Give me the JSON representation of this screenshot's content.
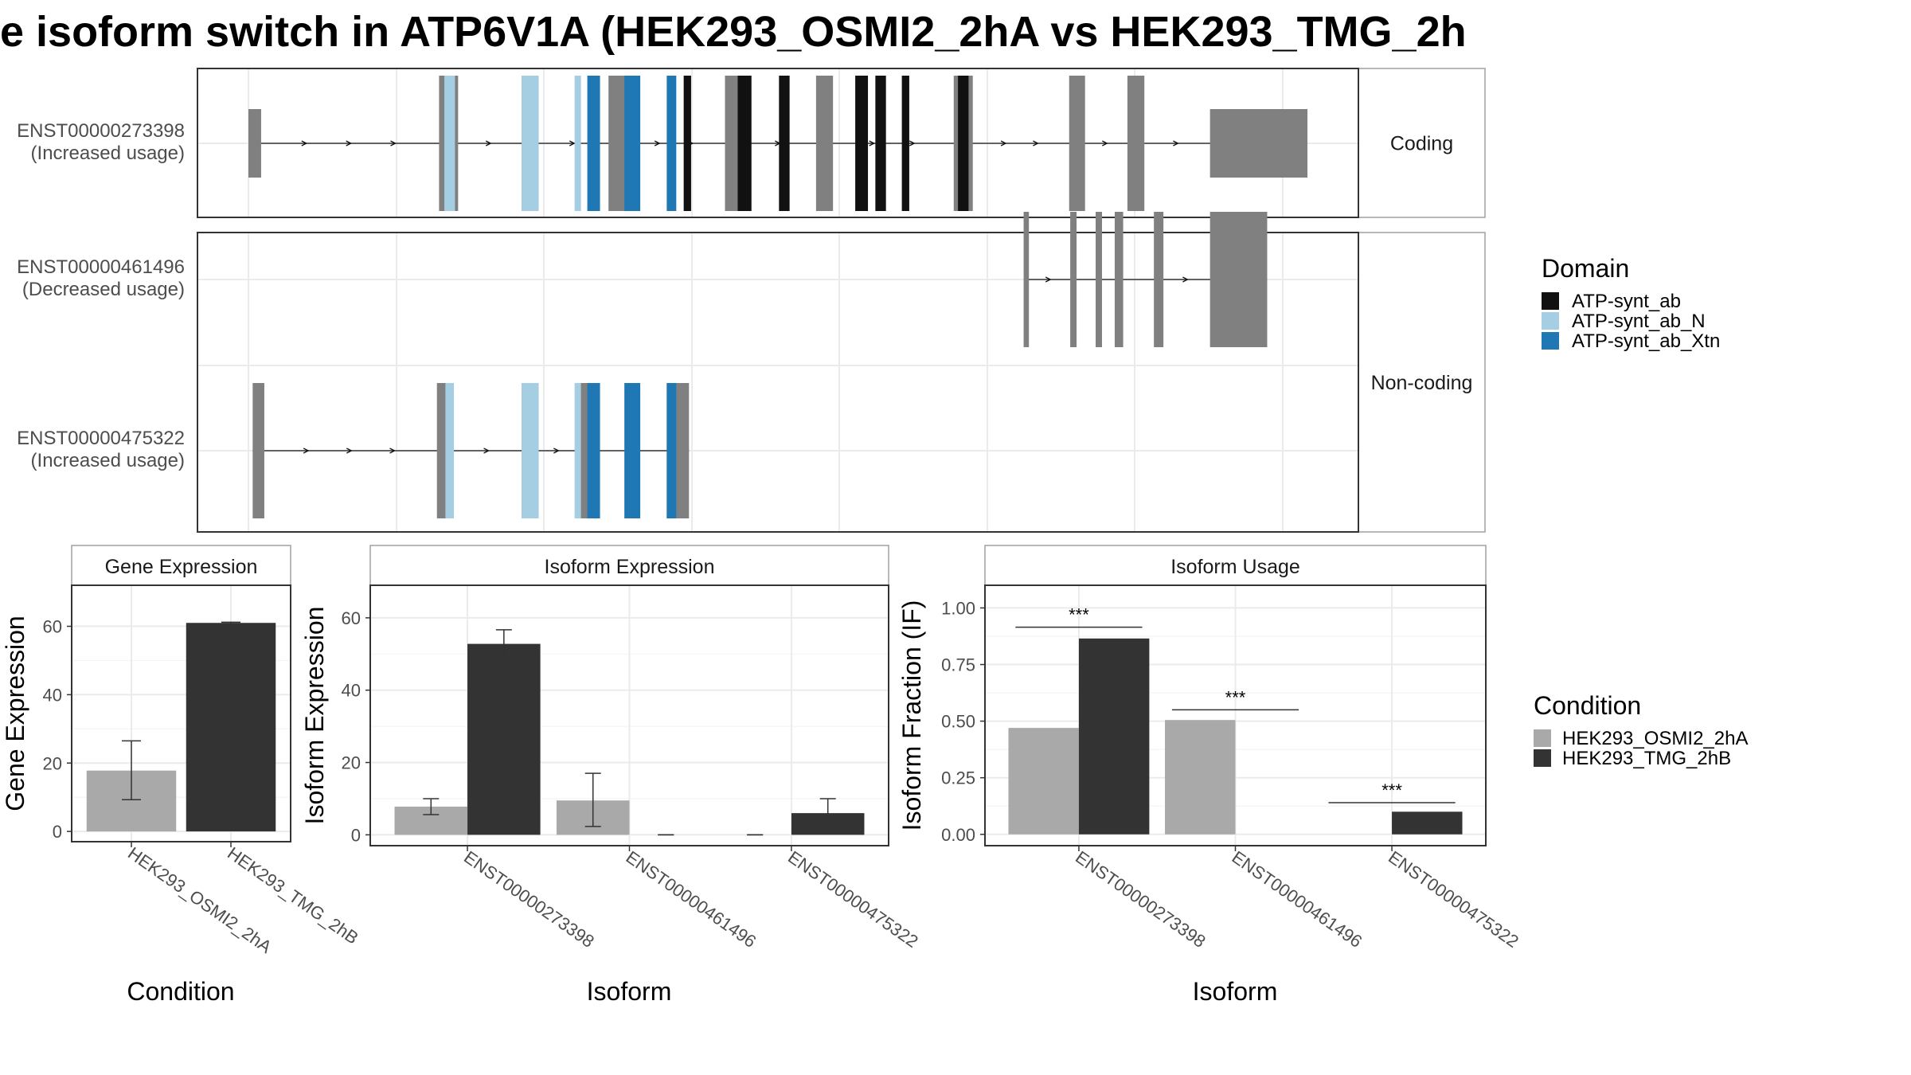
{
  "title": "e isoform switch in ATP6V1A (HEK293_OSMI2_2hA vs HEK293_TMG_2h",
  "colors": {
    "exon": "#808080",
    "ATP-synt_ab": "#111111",
    "ATP-synt_ab_N": "#a6cee3",
    "ATP-synt_ab_Xtn": "#1f78b4",
    "cond_a": "#a9a9a9",
    "cond_b": "#333333"
  },
  "structure": {
    "x_range": [
      0,
      1000
    ],
    "facets": [
      "Coding",
      "Non-coding"
    ],
    "transcripts": [
      {
        "id": "ENST00000273398",
        "usage": "(Increased usage)",
        "facet": "Coding",
        "coding": true,
        "exons": [
          [
            0,
            12
          ],
          [
            180,
            198
          ],
          [
            258,
            274
          ],
          [
            340,
            356
          ],
          [
            450,
            466
          ],
          [
            536,
            552
          ],
          [
            666,
            684
          ],
          [
            775,
            790
          ],
          [
            830,
            846
          ],
          [
            908,
            1000
          ]
        ],
        "domains": [
          {
            "name": "ATP-synt_ab_N",
            "x": [
              185,
              195
            ]
          },
          {
            "name": "ATP-synt_ab_N",
            "x": [
              258,
              274
            ]
          },
          {
            "name": "ATP-synt_ab_N",
            "x": [
              308,
              314
            ]
          },
          {
            "name": "ATP-synt_ab_Xtn",
            "x": [
              320,
              332
            ]
          },
          {
            "name": "ATP-synt_ab_Xtn",
            "x": [
              355,
              370
            ]
          },
          {
            "name": "ATP-synt_ab_Xtn",
            "x": [
              395,
              404
            ]
          },
          {
            "name": "ATP-synt_ab",
            "x": [
              411,
              418
            ]
          },
          {
            "name": "ATP-synt_ab",
            "x": [
              462,
              475
            ]
          },
          {
            "name": "ATP-synt_ab",
            "x": [
              501,
              511
            ]
          },
          {
            "name": "ATP-synt_ab",
            "x": [
              573,
              585
            ]
          },
          {
            "name": "ATP-synt_ab",
            "x": [
              592,
              602
            ]
          },
          {
            "name": "ATP-synt_ab",
            "x": [
              617,
              624
            ]
          },
          {
            "name": "ATP-synt_ab",
            "x": [
              670,
              680
            ]
          }
        ]
      },
      {
        "id": "ENST00000461496",
        "usage": "(Decreased usage)",
        "facet": "Non-coding",
        "coding": false,
        "exons": [
          [
            732,
            737
          ],
          [
            776,
            782
          ],
          [
            800,
            806
          ],
          [
            818,
            826
          ],
          [
            855,
            864
          ],
          [
            908,
            962
          ]
        ],
        "domains": []
      },
      {
        "id": "ENST00000475322",
        "usage": "(Increased usage)",
        "facet": "Non-coding",
        "coding": false,
        "exons": [
          [
            4,
            15
          ],
          [
            178,
            194
          ],
          [
            258,
            274
          ],
          [
            310,
            330
          ],
          [
            395,
            416
          ]
        ],
        "domains": [
          {
            "name": "ATP-synt_ab_N",
            "x": [
              186,
              194
            ]
          },
          {
            "name": "ATP-synt_ab_N",
            "x": [
              258,
              274
            ]
          },
          {
            "name": "ATP-synt_ab_N",
            "x": [
              308,
              314
            ]
          },
          {
            "name": "ATP-synt_ab_Xtn",
            "x": [
              320,
              332
            ]
          },
          {
            "name": "ATP-synt_ab_Xtn",
            "x": [
              355,
              370
            ]
          },
          {
            "name": "ATP-synt_ab_Xtn",
            "x": [
              395,
              404
            ]
          }
        ]
      }
    ]
  },
  "domain_legend": {
    "title": "Domain",
    "items": [
      "ATP-synt_ab",
      "ATP-synt_ab_N",
      "ATP-synt_ab_Xtn"
    ]
  },
  "condition_legend": {
    "title": "Condition",
    "items": [
      "HEK293_OSMI2_2hA",
      "HEK293_TMG_2hB"
    ]
  },
  "chart_data": [
    {
      "type": "bar",
      "title": "Gene Expression",
      "xlabel": "Condition",
      "ylabel": "Gene Expression",
      "categories": [
        "HEK293_OSMI2_2hA",
        "HEK293_TMG_2hB"
      ],
      "values": [
        17.8,
        61.0
      ],
      "error": [
        [
          9.3,
          26.5
        ],
        [
          60.8,
          61.2
        ]
      ],
      "yticks": [
        0,
        20,
        40,
        60
      ],
      "ylim": [
        -3,
        72
      ]
    },
    {
      "type": "bar",
      "title": "Isoform Expression",
      "xlabel": "Isoform",
      "ylabel": "Isoform Expression",
      "categories": [
        "ENST00000273398",
        "ENST00000461496",
        "ENST00000475322"
      ],
      "series": [
        {
          "name": "HEK293_OSMI2_2hA",
          "values": [
            7.8,
            9.5,
            0.0
          ],
          "error": [
            [
              5.6,
              10.0
            ],
            [
              2.3,
              17.0
            ],
            [
              0.0,
              0.0
            ]
          ]
        },
        {
          "name": "HEK293_TMG_2hB",
          "values": [
            52.8,
            0.0,
            6.0
          ],
          "error": [
            [
              48.9,
              56.7
            ],
            [
              0.0,
              0.0
            ],
            [
              2.0,
              10.0
            ]
          ]
        }
      ],
      "yticks": [
        0,
        20,
        40,
        60
      ],
      "ylim": [
        -3,
        69
      ]
    },
    {
      "type": "bar",
      "title": "Isoform Usage",
      "xlabel": "Isoform",
      "ylabel": "Isoform Fraction (IF)",
      "categories": [
        "ENST00000273398",
        "ENST00000461496",
        "ENST00000475322"
      ],
      "series": [
        {
          "name": "HEK293_OSMI2_2hA",
          "values": [
            0.47,
            0.505,
            0.0
          ]
        },
        {
          "name": "HEK293_TMG_2hB",
          "values": [
            0.865,
            0.0,
            0.1
          ]
        }
      ],
      "significance": [
        {
          "label": "***",
          "y": 0.915
        },
        {
          "label": "***",
          "y": 0.55
        },
        {
          "label": "***",
          "y": 0.14
        }
      ],
      "yticks": [
        "0.00",
        "0.25",
        "0.50",
        "0.75",
        "1.00"
      ],
      "ylim": [
        -0.05,
        1.1
      ]
    }
  ]
}
